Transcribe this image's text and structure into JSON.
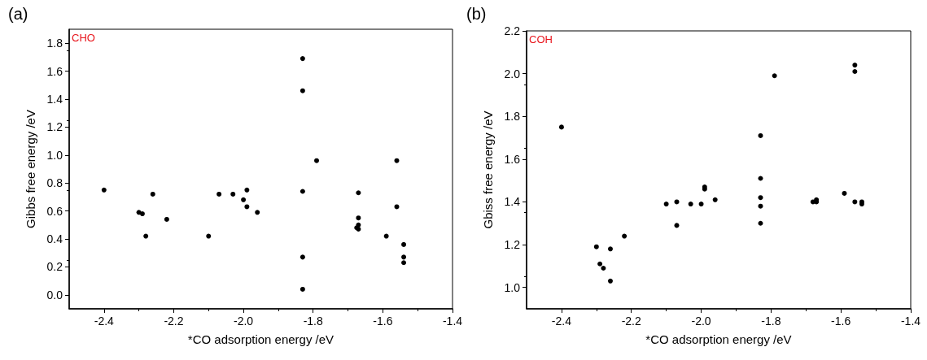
{
  "chart_data": [
    {
      "type": "scatter",
      "title": "(a)",
      "xlabel": "*CO adsorption energy /eV",
      "ylabel": "Gibbs free energy /eV",
      "annotations": [
        "CHO"
      ],
      "marker": "circle",
      "grid": false,
      "xlim": [
        -2.5,
        -1.4
      ],
      "xticks": [
        -2.4,
        -2.2,
        {
          "value": -2,
          "label": "-2.0"
        },
        -1.8,
        -1.6,
        -1.4
      ],
      "ylim": [
        -0.1,
        1.9
      ],
      "yticks": [
        {
          "value": 0,
          "label": "0.0"
        },
        0.2,
        0.4,
        0.6,
        0.8,
        {
          "value": 1,
          "label": "1.0"
        },
        1.2,
        1.4,
        1.6,
        1.8
      ],
      "series": [
        {
          "color": "#000000",
          "x": [
            -2.4,
            -2.3,
            -2.29,
            -2.28,
            -2.26,
            -2.22,
            -2.1,
            -2.07,
            -2.03,
            -2.0,
            -1.99,
            -1.99,
            -1.96,
            -1.83,
            -1.83,
            -1.83,
            -1.83,
            -1.83,
            -1.79,
            -1.67,
            -1.67,
            -1.67,
            -1.675,
            -1.67,
            -1.59,
            -1.56,
            -1.56,
            -1.54,
            -1.54,
            -1.54
          ],
          "values": [
            0.75,
            0.59,
            0.58,
            0.42,
            0.72,
            0.54,
            0.42,
            0.72,
            0.72,
            0.68,
            0.75,
            0.63,
            0.59,
            1.69,
            1.46,
            0.74,
            0.27,
            0.04,
            0.96,
            0.73,
            0.55,
            0.5,
            0.48,
            0.47,
            0.42,
            0.96,
            0.63,
            0.36,
            0.27,
            0.23
          ]
        }
      ]
    },
    {
      "type": "scatter",
      "title": "(b)",
      "xlabel": "*CO adsorption energy /eV",
      "ylabel": "Gbiss free energy /eV",
      "annotations": [
        "COH"
      ],
      "marker": "circle",
      "grid": false,
      "xlim": [
        -2.5,
        -1.4
      ],
      "xticks": [
        -2.4,
        -2.2,
        {
          "value": -2,
          "label": "-2.0"
        },
        -1.8,
        -1.6,
        -1.4
      ],
      "ylim": [
        0.9,
        2.2
      ],
      "yticks": [
        {
          "value": 1,
          "label": "1.0"
        },
        1.2,
        1.4,
        1.6,
        1.8,
        {
          "value": 2,
          "label": "2.0"
        },
        2.2
      ],
      "series": [
        {
          "color": "#000000",
          "x": [
            -2.4,
            -2.3,
            -2.29,
            -2.28,
            -2.26,
            -2.26,
            -2.22,
            -2.1,
            -2.07,
            -2.07,
            -2.03,
            -2.0,
            -1.99,
            -1.99,
            -1.96,
            -1.83,
            -1.83,
            -1.83,
            -1.83,
            -1.83,
            -1.79,
            -1.68,
            -1.67,
            -1.67,
            -1.59,
            -1.56,
            -1.56,
            -1.56,
            -1.54,
            -1.54
          ],
          "values": [
            1.75,
            1.19,
            1.11,
            1.09,
            1.18,
            1.03,
            1.24,
            1.39,
            1.4,
            1.29,
            1.39,
            1.39,
            1.47,
            1.46,
            1.41,
            1.71,
            1.51,
            1.42,
            1.38,
            1.3,
            1.99,
            1.4,
            1.41,
            1.4,
            1.44,
            2.04,
            2.01,
            1.4,
            1.4,
            1.39
          ]
        }
      ]
    }
  ]
}
